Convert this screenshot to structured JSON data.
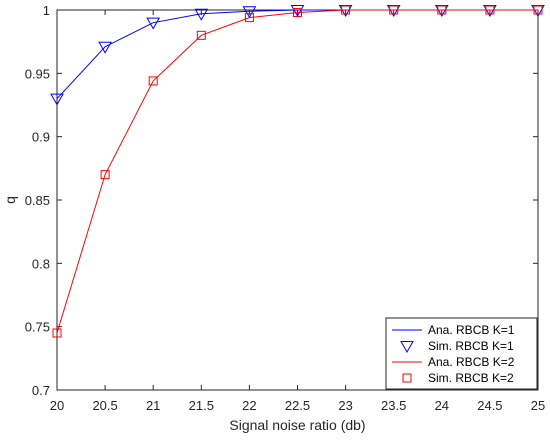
{
  "chart_data": {
    "type": "line",
    "xlabel": "Signal noise ratio (db)",
    "ylabel": "q",
    "xlim": [
      20,
      25
    ],
    "ylim": [
      0.7,
      1
    ],
    "xticks": [
      20,
      20.5,
      21,
      21.5,
      22,
      22.5,
      23,
      23.5,
      24,
      24.5,
      25
    ],
    "yticks": [
      0.7,
      0.75,
      0.8,
      0.85,
      0.9,
      0.95,
      1
    ],
    "xtick_labels": [
      "20",
      "20.5",
      "21",
      "21.5",
      "22",
      "22.5",
      "23",
      "23.5",
      "24",
      "24.5",
      "25"
    ],
    "ytick_labels": [
      "0.7",
      "0.75",
      "0.8",
      "0.85",
      "0.9",
      "0.95",
      "1"
    ],
    "grid": false,
    "legend_position": "bottom-right",
    "x": [
      20,
      20.5,
      21,
      21.5,
      22,
      22.5,
      23,
      23.5,
      24,
      24.5,
      25
    ],
    "series": [
      {
        "name": "Ana. RBCB K=1",
        "style": "line",
        "color": "#0000ff",
        "values": [
          0.93,
          0.971,
          0.99,
          0.997,
          0.999,
          1.0,
          1.0,
          1.0,
          1.0,
          1.0,
          1.0
        ]
      },
      {
        "name": "Sim. RBCB K=1",
        "style": "marker",
        "marker": "triangle-down",
        "color": "#0000ff",
        "values": [
          0.93,
          0.971,
          0.99,
          0.997,
          0.999,
          1.0,
          1.0,
          1.0,
          1.0,
          1.0,
          1.0
        ]
      },
      {
        "name": "Ana. RBCB K=2",
        "style": "line",
        "color": "#ff0000",
        "values": [
          0.745,
          0.87,
          0.944,
          0.98,
          0.994,
          0.998,
          1.0,
          1.0,
          1.0,
          1.0,
          1.0
        ]
      },
      {
        "name": "Sim. RBCB K=2",
        "style": "marker",
        "marker": "square",
        "color": "#ff0000",
        "values": [
          0.745,
          0.87,
          0.944,
          0.98,
          0.994,
          0.998,
          1.0,
          1.0,
          1.0,
          1.0,
          1.0
        ]
      }
    ]
  }
}
